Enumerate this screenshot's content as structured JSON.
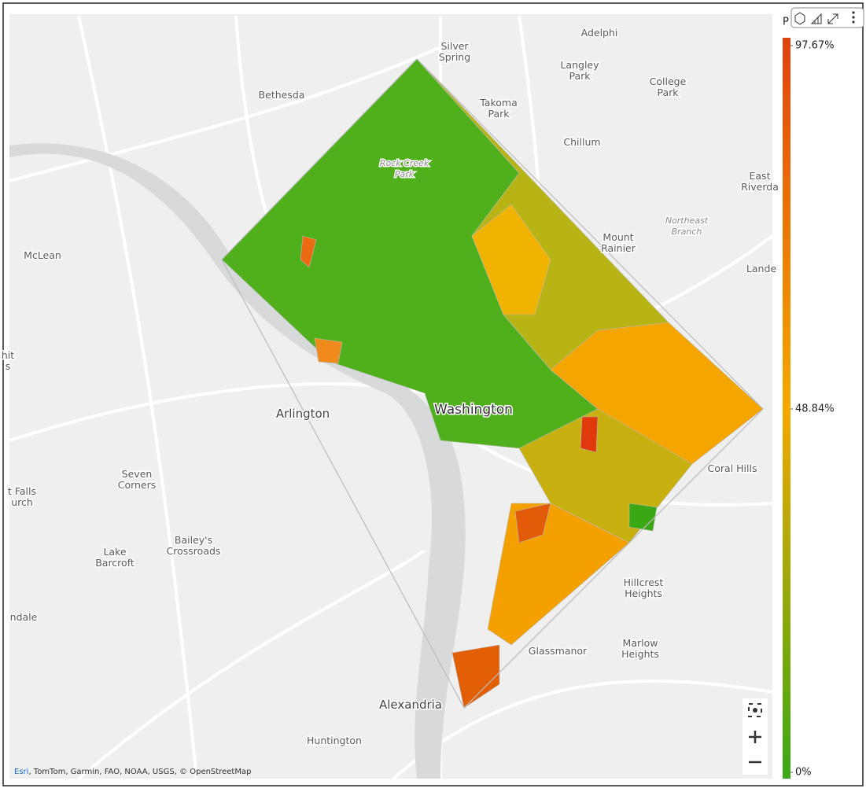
{
  "map": {
    "places": [
      [
        "Silver",
        "Spring"
      ],
      [
        "Adelphi"
      ],
      [
        "Langley",
        "Park"
      ],
      [
        "College",
        "Park"
      ],
      [
        "Bethesda"
      ],
      [
        "Takoma",
        "Park"
      ],
      [
        "Chillum"
      ],
      [
        "East",
        "Riverda"
      ],
      [
        "Rock Creek",
        "Park"
      ],
      [
        "Northeast",
        "Branch"
      ],
      [
        "Mount",
        "Rainier"
      ],
      [
        "McLean"
      ],
      [
        "Lande"
      ],
      [
        "hit",
        "s"
      ],
      [
        "Arlington"
      ],
      [
        "Washington"
      ],
      [
        "Coral Hills"
      ],
      [
        "Seven",
        "Corners"
      ],
      [
        "t Falls",
        "urch"
      ],
      [
        "Lake",
        "Barcroft"
      ],
      [
        "Bailey's",
        "Crossroads"
      ],
      [
        "ndale"
      ],
      [
        "Hillcrest",
        "Heights"
      ],
      [
        "Marlow",
        "Heights"
      ],
      [
        "Glassmanor"
      ],
      [
        "Alexandria"
      ],
      [
        "Huntington"
      ]
    ],
    "attribution": {
      "brand": "Esri",
      "rest": ", TomTom, Garmin, FAO, NOAA, USGS, © OpenStreetMap"
    }
  },
  "legend": {
    "title": "P",
    "ticks": [
      {
        "value": 97.67,
        "label": "97.67%"
      },
      {
        "value": 48.84,
        "label": "48.84%"
      },
      {
        "value": 0,
        "label": "0%"
      }
    ]
  }
}
